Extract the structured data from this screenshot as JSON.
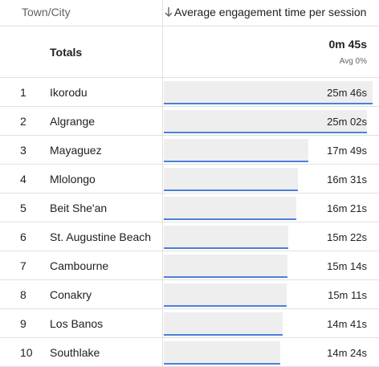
{
  "header": {
    "dimension_label": "Town/City",
    "metric_label": "Average engagement time per session",
    "sort_icon": "arrow-down-icon"
  },
  "totals": {
    "label": "Totals",
    "value": "0m 45s",
    "sub": "Avg 0%"
  },
  "rows": [
    {
      "rank": "1",
      "city": "Ikorodu",
      "value": "25m 46s",
      "seconds": 1546
    },
    {
      "rank": "2",
      "city": "Algrange",
      "value": "25m 02s",
      "seconds": 1502
    },
    {
      "rank": "3",
      "city": "Mayaguez",
      "value": "17m 49s",
      "seconds": 1069
    },
    {
      "rank": "4",
      "city": "Mlolongo",
      "value": "16m 31s",
      "seconds": 991
    },
    {
      "rank": "5",
      "city": "Beit She'an",
      "value": "16m 21s",
      "seconds": 981
    },
    {
      "rank": "6",
      "city": "St. Augustine Beach",
      "value": "15m 22s",
      "seconds": 922
    },
    {
      "rank": "7",
      "city": "Cambourne",
      "value": "15m 14s",
      "seconds": 914
    },
    {
      "rank": "8",
      "city": "Conakry",
      "value": "15m 11s",
      "seconds": 911
    },
    {
      "rank": "9",
      "city": "Los Banos",
      "value": "14m 41s",
      "seconds": 881
    },
    {
      "rank": "10",
      "city": "Southlake",
      "value": "14m 24s",
      "seconds": 864
    }
  ],
  "colors": {
    "bar_fill": "#eeeeee",
    "bar_accent": "#4c7fdc",
    "divider": "#e0e0e0"
  }
}
